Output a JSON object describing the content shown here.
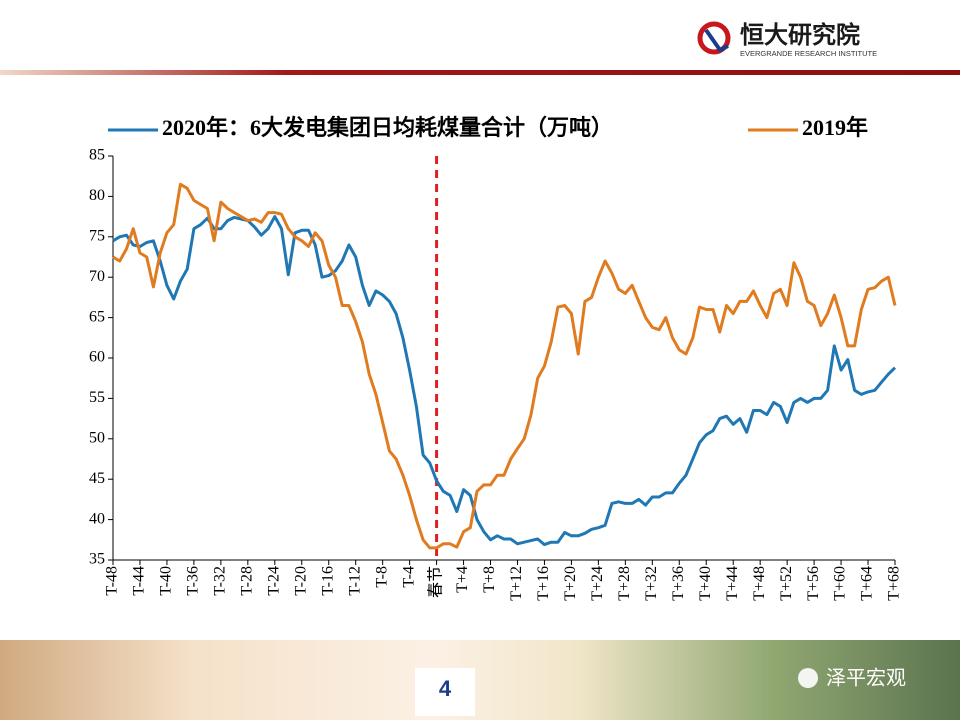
{
  "logo": {
    "name": "恒大研究院",
    "subtitle": "EVERGRANDE RESEARCH INSTITUTE"
  },
  "page_number": "4",
  "watermark": "泽平宏观",
  "chart_data": {
    "type": "line",
    "categories": [
      "T-48",
      null,
      null,
      null,
      "T-44",
      null,
      null,
      null,
      "T-40",
      null,
      null,
      null,
      "T-36",
      null,
      null,
      null,
      "T-32",
      null,
      null,
      null,
      "T-28",
      null,
      null,
      null,
      "T-24",
      null,
      null,
      null,
      "T-20",
      null,
      null,
      null,
      "T-16",
      null,
      null,
      null,
      "T-12",
      null,
      null,
      null,
      "T-8",
      null,
      null,
      null,
      "T-4",
      null,
      null,
      null,
      "春节",
      null,
      null,
      null,
      "T+4",
      null,
      null,
      null,
      "T+8",
      null,
      null,
      null,
      "T+12",
      null,
      null,
      null,
      "T+16",
      null,
      null,
      null,
      "T+20",
      null,
      null,
      null,
      "T+24",
      null,
      null,
      null,
      "T+28",
      null,
      null,
      null,
      "T+32",
      null,
      null,
      null,
      "T+36",
      null,
      null,
      null,
      "T+40",
      null,
      null,
      null,
      "T+44",
      null,
      null,
      null,
      "T+48",
      null,
      null,
      null,
      "T+52",
      null,
      null,
      null,
      "T+56",
      null,
      null,
      null,
      "T+60",
      null,
      null,
      null,
      "T+64",
      null,
      null,
      null,
      "T+68"
    ],
    "series": [
      {
        "name": "2020年：6大发电集团日均耗煤量合计（万吨）",
        "color": "#1f77b4",
        "values": [
          74.5,
          75,
          75.2,
          74,
          73.8,
          74.3,
          74.5,
          72,
          69,
          67.3,
          69.5,
          71,
          76,
          76.5,
          77.3,
          76,
          76,
          77,
          77.4,
          77.2,
          77,
          76.2,
          75.2,
          76,
          77.5,
          76,
          70.3,
          75.5,
          75.8,
          75.8,
          74,
          70,
          70.2,
          70.8,
          72,
          74,
          72.5,
          69,
          66.5,
          68.3,
          67.8,
          67,
          65.5,
          62.5,
          58.5,
          54,
          48,
          47,
          44.8,
          43.5,
          43,
          41,
          43.7,
          43,
          40,
          38.5,
          37.5,
          38,
          37.6,
          37.6,
          37,
          37.2,
          37.4,
          37.6,
          36.9,
          37.2,
          37.2,
          38.4,
          38,
          38,
          38.3,
          38.8,
          39,
          39.3,
          42,
          42.2,
          42,
          42,
          42.5,
          41.8,
          42.8,
          42.8,
          43.3,
          43.3,
          44.5,
          45.5,
          47.5,
          49.5,
          50.5,
          51,
          52.5,
          52.8,
          51.8,
          52.5,
          50.8,
          53.5,
          53.5,
          53,
          54.5,
          54,
          52,
          54.5,
          55,
          54.5,
          55,
          55,
          56,
          61.5,
          58.5,
          59.8,
          56,
          55.5,
          55.8,
          56,
          57,
          58,
          58.8
        ]
      },
      {
        "name": "2019年",
        "color": "#e07b1f",
        "values": [
          72.5,
          72,
          73.5,
          76,
          73,
          72.5,
          68.8,
          73,
          75.5,
          76.5,
          81.5,
          81,
          79.5,
          79,
          78.5,
          74.5,
          79.3,
          78.5,
          78,
          77.5,
          77,
          77.2,
          76.8,
          78,
          78,
          77.8,
          76,
          75,
          74.5,
          73.8,
          75.5,
          74.5,
          71.5,
          70,
          66.5,
          66.5,
          64.5,
          62,
          58,
          55.5,
          52,
          48.5,
          47.5,
          45.5,
          43,
          40,
          37.5,
          36.5,
          36.5,
          37,
          37,
          36.6,
          38.5,
          39,
          43.5,
          44.3,
          44.3,
          45.5,
          45.5,
          47.5,
          48.8,
          50,
          53,
          57.5,
          59,
          62,
          66.3,
          66.5,
          65.5,
          60.5,
          67,
          67.5,
          70,
          72,
          70.5,
          68.5,
          68,
          69,
          67,
          65,
          63.8,
          63.5,
          65,
          62.5,
          61,
          60.5,
          62.5,
          66.3,
          66,
          66,
          63.2,
          66.5,
          65.5,
          67,
          67,
          68.3,
          66.5,
          65,
          68,
          68.5,
          66.5,
          71.8,
          70,
          67,
          66.5,
          64,
          65.5,
          67.8,
          65,
          61.5,
          61.5,
          66,
          68.5,
          68.7,
          69.5,
          70,
          66.5
        ]
      }
    ],
    "ylim": [
      35,
      85
    ],
    "yticks": [
      35,
      40,
      45,
      50,
      55,
      60,
      65,
      70,
      75,
      80,
      85
    ],
    "marker_category": "春节",
    "grid": false
  }
}
